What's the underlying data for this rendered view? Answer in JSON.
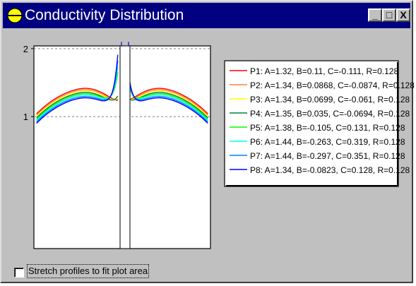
{
  "window": {
    "title": "Conductivity Distribution",
    "controls": {
      "minimize": "_",
      "maximize": "□",
      "close": "X"
    }
  },
  "chart_data": {
    "type": "line",
    "y_tick_labels": [
      "2",
      "1"
    ],
    "yticks": [
      2,
      1
    ],
    "ylim": [
      -0.94,
      2.04
    ],
    "x_range": [
      -1,
      1
    ],
    "grid": "dashed horizontal lines at y=1 and y=2",
    "legend_position": "right",
    "series": [
      {
        "name": "P1: A=1.32, B=0.11, C=-0.111, R=0.128",
        "color": "#ff0000"
      },
      {
        "name": "P2: A=1.34, B=0.0868, C=-0.0874, R=0.128",
        "color": "#ff8040"
      },
      {
        "name": "P3: A=1.34, B=0.0699, C=-0.061, R=0.128",
        "color": "#ffff00"
      },
      {
        "name": "P4: A=1.35, B=0.035, C=-0.0694, R=0.128",
        "color": "#008040"
      },
      {
        "name": "P5: A=1.38, B=-0.105, C=0.131, R=0.128",
        "color": "#00ff00"
      },
      {
        "name": "P6: A=1.44, B=-0.263, C=0.319, R=0.128",
        "color": "#00ffff"
      },
      {
        "name": "P7: A=1.44, B=-0.297, C=0.351, R=0.128",
        "color": "#0080ff"
      },
      {
        "name": "P8: A=1.34, B=-0.0823, C=0.128, R=0.128",
        "color": "#0000ff"
      }
    ]
  },
  "options": {
    "stretch_label": "Stretch profiles to fit plot area",
    "stretch_checked": false
  }
}
